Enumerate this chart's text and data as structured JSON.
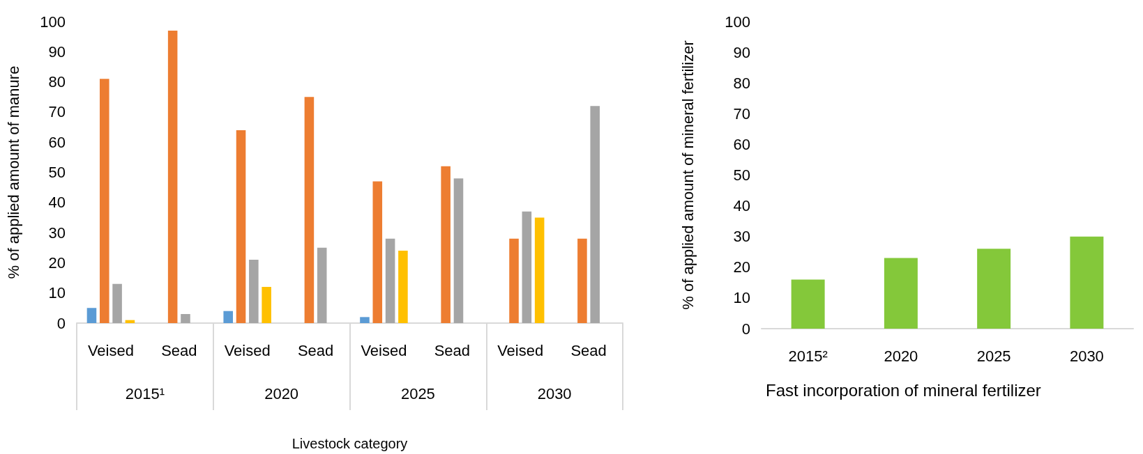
{
  "chart_data": [
    {
      "type": "bar",
      "ylabel": "% of applied amount of manure",
      "xlabel": "Livestock category",
      "categories": [
        "Veised",
        "Sead",
        "Veised",
        "Sead",
        "Veised",
        "Sead",
        "Veised",
        "Sead"
      ],
      "annotations": [
        "2015¹",
        "2020",
        "2025",
        "2030"
      ],
      "ylim": [
        0,
        100
      ],
      "yticks": [
        0,
        10,
        20,
        30,
        40,
        50,
        60,
        70,
        80,
        90,
        100
      ],
      "series": [
        {
          "color": "#5b9bd5",
          "values": [
            5,
            null,
            4,
            null,
            2,
            null,
            null,
            null
          ]
        },
        {
          "color": "#ed7d31",
          "values": [
            81,
            97,
            64,
            75,
            47,
            52,
            28,
            28
          ]
        },
        {
          "color": "#a5a5a5",
          "values": [
            13,
            3,
            21,
            25,
            28,
            48,
            37,
            72
          ]
        },
        {
          "color": "#ffc000",
          "values": [
            1,
            null,
            12,
            null,
            24,
            null,
            35,
            null
          ]
        }
      ]
    },
    {
      "type": "bar",
      "ylabel": "% of applied amount of mineral fertilizer",
      "xlabel": "Fast incorporation of mineral fertilizer",
      "categories": [
        "2015²",
        "2020",
        "2025",
        "2030"
      ],
      "ylim": [
        0,
        100
      ],
      "yticks": [
        0,
        10,
        20,
        30,
        40,
        50,
        60,
        70,
        80,
        90,
        100
      ],
      "series": [
        {
          "color": "#84c83a",
          "values": [
            16,
            23,
            26,
            30
          ]
        }
      ]
    }
  ]
}
